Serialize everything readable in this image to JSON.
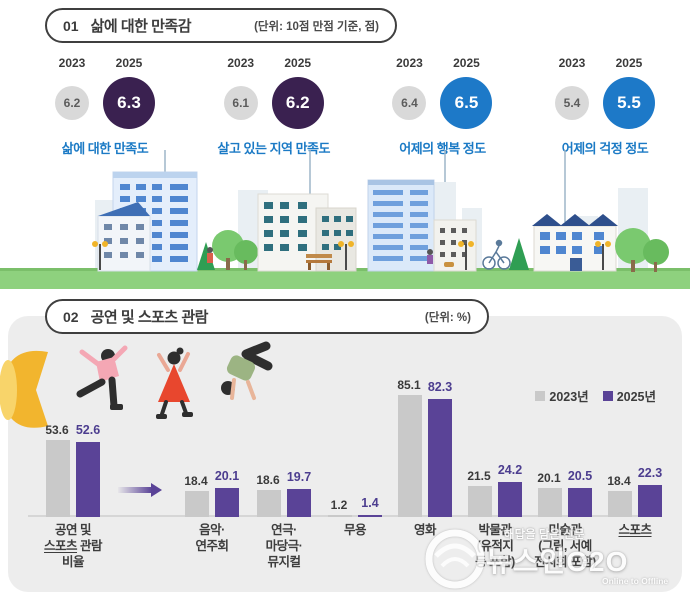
{
  "section1": {
    "number": "01",
    "title": "삶에 대한 만족감",
    "unit_label": "(단위: 10점 만점 기준, 점)",
    "year_left": "2023",
    "year_right": "2025",
    "label_color": "#1b7ac5",
    "circle_color_2023": "#d9d9d9",
    "circle_colors_2025": [
      "#3a2150",
      "#3a2150",
      "#1d79c8",
      "#1d79c8"
    ]
  },
  "section2": {
    "number": "02",
    "title": "공연 및 스포츠 관람",
    "unit_label": "(단위: %)",
    "panel_bg": "#ededed",
    "underlined_word": "스포츠"
  },
  "legend": {
    "items": [
      {
        "label": "2023년",
        "color": "#c9c9c9"
      },
      {
        "label": "2025년",
        "color": "#5a4397"
      }
    ]
  },
  "chart_data": [
    {
      "type": "table",
      "title": "삶에 대한 만족감",
      "unit": "10점 만점 기준, 점",
      "categories": [
        "삶에 대한 만족도",
        "살고 있는 지역 만족도",
        "어제의 행복 정도",
        "어제의 걱정 정도"
      ],
      "series": [
        {
          "name": "2023",
          "values": [
            6.2,
            6.1,
            6.4,
            5.4
          ]
        },
        {
          "name": "2025",
          "values": [
            6.3,
            6.2,
            6.5,
            5.5
          ]
        }
      ]
    },
    {
      "type": "bar",
      "title": "공연 및 스포츠 관람",
      "unit": "%",
      "ylim": [
        0,
        90
      ],
      "grid": false,
      "legend_position": "top-right",
      "categories": [
        "공연 및 스포츠 관람 비율",
        "음악·연주회",
        "연극·마당극·뮤지컬",
        "무용",
        "영화",
        "박물관(유적지 등 포함)",
        "미술관(그림, 서예 전시회 포함)",
        "스포츠"
      ],
      "categories_lines": [
        [
          "공연 및",
          "스포츠 관람",
          "비율"
        ],
        [
          "음악·",
          "연주회"
        ],
        [
          "연극·",
          "마당극·",
          "뮤지컬"
        ],
        [
          "무용"
        ],
        [
          "영화"
        ],
        [
          "박물관",
          "(유적지",
          "등 포함)"
        ],
        [
          "미술관",
          "(그림, 서예",
          "전시회 포함)"
        ],
        [
          "스포츠"
        ]
      ],
      "series": [
        {
          "name": "2023년",
          "color": "#c9c9c9",
          "values": [
            53.6,
            18.4,
            18.6,
            1.2,
            85.1,
            21.5,
            20.1,
            18.4
          ]
        },
        {
          "name": "2025년",
          "color": "#5a4397",
          "values": [
            52.6,
            20.1,
            19.7,
            1.4,
            82.3,
            24.2,
            20.5,
            22.3
          ]
        }
      ]
    }
  ],
  "watermark": {
    "slogan": "해답을 담은 신문",
    "logo": "뉴스인O2O",
    "subtitle": "Online to Offline"
  },
  "decorations": {
    "icons": [
      "megaphone-icon",
      "dancer-pink-icon",
      "dancer-red-icon",
      "dancer-handstand-icon",
      "cityscape-illustration"
    ]
  }
}
